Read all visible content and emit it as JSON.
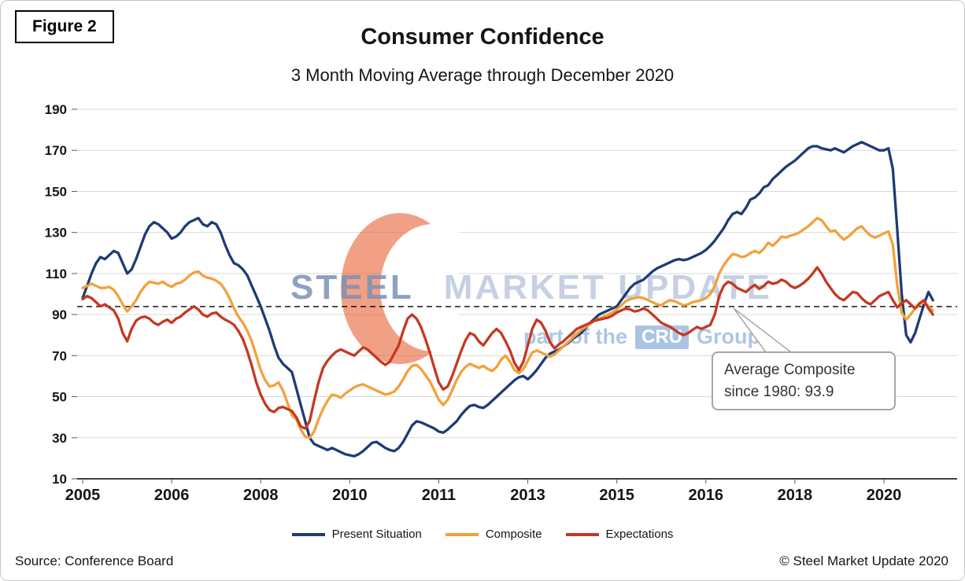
{
  "figure_label": "Figure 2",
  "title": "Consumer Confidence",
  "subtitle": "3 Month Moving Average through December 2020",
  "source": "Source: Conference Board",
  "copyright": "© Steel Market Update 2020",
  "watermark": {
    "steel": "STEEL",
    "market_update": "MARKET UPDATE",
    "part_of_the": "part of the",
    "cru": "CRU",
    "group": "Group"
  },
  "annotation": {
    "line1": "Average Composite",
    "line2": "since 1980: 93.9"
  },
  "legend": [
    {
      "label": "Present Situation",
      "color": "#1F3B73"
    },
    {
      "label": "Composite",
      "color": "#F2A13C"
    },
    {
      "label": "Expectations",
      "color": "#C53822"
    }
  ],
  "chart_data": {
    "type": "line",
    "title": "Consumer Confidence",
    "subtitle": "3 Month Moving Average through December 2020",
    "x_unit": "month",
    "x_start": "2005-01",
    "x_end": "2020-12",
    "x_tick_months": [
      0,
      20,
      40,
      60,
      80,
      100,
      120,
      140,
      160,
      180
    ],
    "x_tick_labels": [
      "2005",
      "2006",
      "2008",
      "2010",
      "2011",
      "2013",
      "2015",
      "2016",
      "2018",
      "2020"
    ],
    "ylim": [
      10,
      190
    ],
    "y_ticks": [
      10,
      30,
      50,
      70,
      90,
      110,
      130,
      150,
      170,
      190
    ],
    "grid": "horizontal",
    "legend_position": "bottom",
    "reference_line": {
      "value": 93.9,
      "style": "dashed",
      "color": "#000000",
      "label": "Average Composite since 1980: 93.9"
    },
    "series": [
      {
        "name": "Present Situation",
        "color": "#1F3B73",
        "values": [
          98,
          104,
          110,
          115,
          118,
          117,
          119,
          121,
          120,
          115,
          110,
          112,
          117,
          123,
          129,
          133,
          135,
          134,
          132,
          130,
          127,
          128,
          130,
          133,
          135,
          136,
          137,
          134,
          133,
          135,
          134,
          130,
          124,
          119,
          115,
          114,
          112,
          109,
          104,
          99,
          94,
          88,
          82,
          75,
          69,
          66,
          64,
          62,
          54,
          46,
          38,
          30,
          27,
          26,
          25,
          24,
          25,
          24,
          23,
          22,
          21.5,
          21,
          22,
          23.5,
          25.5,
          27.5,
          28,
          26.5,
          25,
          24,
          23.5,
          25,
          28,
          32,
          36,
          38,
          37.5,
          36.5,
          35.5,
          34.5,
          33,
          32.5,
          34,
          36,
          38,
          41,
          43.5,
          45.5,
          46,
          45,
          44.5,
          46,
          48,
          50,
          52,
          54,
          56,
          58,
          59.5,
          60,
          58.5,
          60.5,
          63,
          66,
          69,
          71,
          72,
          73,
          74.5,
          76,
          78,
          79.5,
          81,
          83.5,
          86,
          88,
          90,
          91,
          92,
          93,
          94,
          97,
          100,
          103,
          105,
          106,
          107,
          109,
          111,
          112.5,
          113.5,
          114.5,
          115.5,
          116.5,
          117,
          116.5,
          117,
          118,
          119,
          120,
          121.5,
          123.5,
          126,
          129,
          132,
          136,
          139,
          140,
          139,
          142,
          146,
          147,
          149,
          152,
          153,
          156,
          158,
          160,
          162,
          163.5,
          165,
          167,
          169,
          171,
          172,
          172,
          171,
          170.5,
          170,
          171,
          170,
          169,
          170.5,
          172,
          173,
          174,
          173,
          172,
          171,
          170,
          170,
          171,
          161,
          131,
          100,
          80,
          76.5,
          81,
          88,
          95,
          101,
          97
        ]
      },
      {
        "name": "Composite",
        "color": "#F2A13C",
        "values": [
          103,
          104,
          105,
          104,
          103,
          103,
          103.5,
          102,
          99,
          95,
          91.5,
          94,
          97,
          101,
          104,
          106,
          105.5,
          105,
          106,
          104.5,
          103.5,
          105,
          105.5,
          107,
          109,
          110.5,
          111,
          109,
          108,
          107.5,
          106.5,
          105,
          102,
          98,
          93,
          89,
          86,
          82,
          77,
          70,
          63,
          58,
          55,
          55.5,
          57,
          53,
          47,
          41,
          39,
          34,
          30.5,
          30,
          33,
          39,
          44,
          48,
          51,
          50.5,
          49.5,
          51.5,
          53,
          54.5,
          55.5,
          56,
          55,
          54,
          53,
          52,
          51,
          51.5,
          52.5,
          55,
          58.5,
          62.5,
          65,
          65.5,
          63.5,
          60.5,
          57.5,
          53,
          48.5,
          46,
          48.5,
          53,
          58,
          62,
          64.5,
          66,
          65,
          64,
          65,
          63.5,
          62.5,
          64.5,
          68,
          70,
          67,
          63,
          61.5,
          63.5,
          67.5,
          71.5,
          72.5,
          71.5,
          70.5,
          69.5,
          70.5,
          72.5,
          74.5,
          76.5,
          78.5,
          80.5,
          82.5,
          84,
          85.5,
          87,
          88,
          89,
          90,
          91,
          92.5,
          94.5,
          96.5,
          97.5,
          98,
          98.5,
          98,
          97,
          96,
          95,
          94.5,
          96,
          97,
          96.5,
          95.5,
          94.5,
          95,
          96,
          96.5,
          97,
          98,
          100,
          104,
          110,
          114,
          117,
          119.5,
          119,
          118,
          118.5,
          120,
          121,
          120,
          122,
          125,
          123.5,
          125.5,
          128,
          127.5,
          128.5,
          129,
          130,
          131.5,
          133,
          135,
          137,
          136,
          133,
          130.5,
          131,
          128.5,
          126.5,
          128,
          130,
          132,
          133,
          130.5,
          128.5,
          127.5,
          128.5,
          129.5,
          130.5,
          124,
          104,
          91,
          87.5,
          90,
          93,
          95,
          96,
          94,
          92
        ]
      },
      {
        "name": "Expectations",
        "color": "#C53822",
        "values": [
          97.5,
          99,
          98,
          96,
          94,
          95,
          93.5,
          92,
          88,
          81,
          77,
          83,
          87,
          88.5,
          89,
          88,
          86,
          85,
          86.5,
          87.5,
          86,
          88,
          89,
          91,
          92.5,
          94,
          92.5,
          90,
          89,
          90.5,
          91,
          89,
          87.5,
          86.5,
          85,
          82,
          78,
          72,
          65,
          57,
          51,
          46.5,
          43.5,
          42.5,
          44.5,
          45,
          44,
          43,
          40,
          35.5,
          34.5,
          38,
          48,
          57,
          64,
          67.5,
          70,
          72,
          73,
          72,
          71,
          70,
          72,
          74,
          73,
          71,
          69,
          67,
          65.5,
          67,
          71,
          75,
          82,
          88,
          90,
          88,
          84,
          78,
          71.5,
          64,
          57,
          53.5,
          55,
          60,
          66,
          72,
          77.5,
          81,
          80,
          77,
          75,
          78,
          81,
          83,
          81,
          77,
          72.5,
          66.5,
          63,
          67,
          75,
          83,
          87.5,
          86,
          82,
          76.5,
          73.5,
          75.5,
          77,
          79,
          81,
          83,
          84,
          85,
          86,
          87,
          87.5,
          88,
          88.5,
          89.5,
          91,
          92,
          93,
          92.5,
          91.5,
          92,
          93,
          92,
          90,
          88,
          86,
          85,
          84,
          82.5,
          81,
          80,
          81,
          82.5,
          84,
          83,
          84,
          85,
          90,
          99,
          104,
          106,
          105,
          103,
          102,
          101,
          103,
          104.5,
          102.5,
          104,
          106,
          105,
          105.5,
          107,
          106,
          104,
          103,
          104,
          105.5,
          107.5,
          110,
          113,
          110,
          106,
          103,
          100,
          98,
          97,
          99,
          101,
          100.5,
          98,
          96,
          95,
          97,
          99,
          100,
          101,
          97,
          93.5,
          95.5,
          97,
          95,
          93,
          95.5,
          97,
          93,
          90
        ]
      }
    ]
  }
}
